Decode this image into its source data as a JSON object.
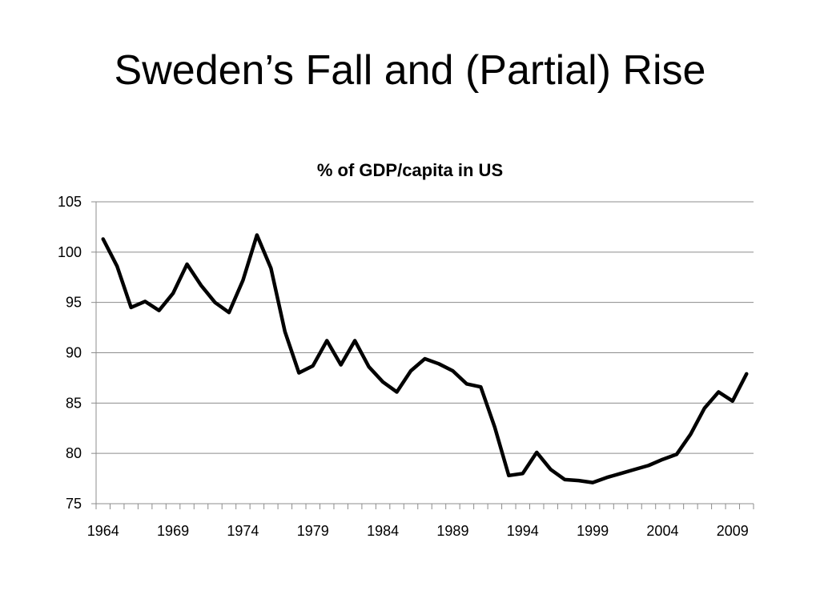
{
  "slide": {
    "title": "Sweden’s Fall and (Partial) Rise"
  },
  "chart_data": {
    "type": "line",
    "title": "% of GDP/capita in US",
    "xlabel": "",
    "ylabel": "",
    "ylim": [
      75,
      105
    ],
    "yticks": [
      75,
      80,
      85,
      90,
      95,
      100,
      105
    ],
    "xlim": [
      1964,
      2010
    ],
    "xtick_labels": [
      "1964",
      "1969",
      "1974",
      "1979",
      "1984",
      "1989",
      "1994",
      "1999",
      "2004",
      "2009"
    ],
    "grid": true,
    "legend": "none",
    "line_color": "#000000",
    "series": [
      {
        "x": [
          1964,
          1965,
          1966,
          1967,
          1968,
          1969,
          1970,
          1971,
          1972,
          1973,
          1974,
          1975,
          1976,
          1977,
          1978,
          1979,
          1980,
          1981,
          1982,
          1983,
          1984,
          1985,
          1986,
          1987,
          1988,
          1989,
          1990,
          1991,
          1992,
          1993,
          1994,
          1995,
          1996,
          1997,
          1998,
          1999,
          2000,
          2001,
          2002,
          2003,
          2004,
          2005,
          2006,
          2007,
          2008,
          2009,
          2010
        ],
        "values": [
          101.3,
          98.6,
          94.5,
          95.1,
          94.2,
          95.9,
          98.8,
          96.7,
          95.0,
          94.0,
          97.2,
          101.7,
          98.4,
          92.1,
          88.0,
          88.7,
          91.2,
          88.8,
          91.2,
          88.6,
          87.1,
          86.1,
          88.2,
          89.4,
          88.9,
          88.2,
          86.9,
          86.6,
          82.6,
          77.8,
          78.0,
          80.1,
          78.4,
          77.4,
          77.3,
          77.1,
          77.6,
          78.0,
          78.4,
          78.8,
          79.4,
          79.9,
          81.9,
          84.5,
          86.1,
          85.2,
          87.9
        ]
      }
    ]
  }
}
